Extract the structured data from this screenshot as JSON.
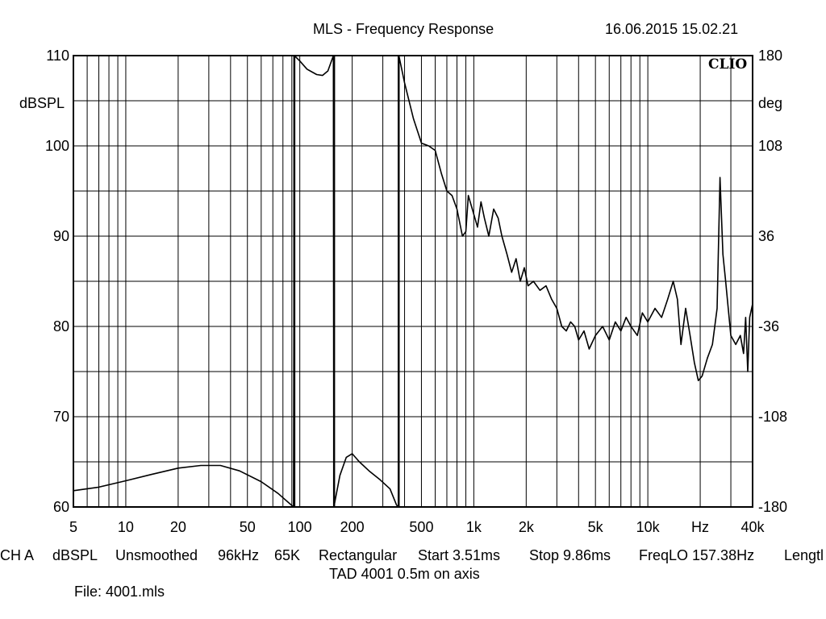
{
  "header": {
    "title": "MLS - Frequency Response",
    "datetime": "16.06.2015 15.02.21",
    "brand": "CLIO"
  },
  "chart_data": {
    "type": "line",
    "title": "MLS - Frequency Response",
    "x_scale": "log",
    "xlim": [
      5,
      40000
    ],
    "x_tick_labels": [
      {
        "value": 5,
        "label": "5"
      },
      {
        "value": 10,
        "label": "10"
      },
      {
        "value": 20,
        "label": "20"
      },
      {
        "value": 50,
        "label": "50"
      },
      {
        "value": 100,
        "label": "100"
      },
      {
        "value": 200,
        "label": "200"
      },
      {
        "value": 500,
        "label": "500"
      },
      {
        "value": 1000,
        "label": "1k"
      },
      {
        "value": 2000,
        "label": "2k"
      },
      {
        "value": 5000,
        "label": "5k"
      },
      {
        "value": 10000,
        "label": "10k"
      },
      {
        "value": 20000,
        "label": "Hz"
      },
      {
        "value": 40000,
        "label": "40k"
      }
    ],
    "y_left": {
      "unit": "dBSPL",
      "ylim": [
        60,
        110
      ],
      "ticks": [
        60,
        70,
        80,
        90,
        100,
        110
      ]
    },
    "y_right": {
      "unit": "deg",
      "ylim": [
        -180,
        180
      ],
      "ticks": [
        180,
        108,
        36,
        -36,
        -108,
        -180
      ]
    },
    "grid": true,
    "gate_markers_hz": [
      93,
      157.38,
      370
    ],
    "series": [
      {
        "axis": "left",
        "color": "#000000",
        "points": [
          [
            5,
            61.8
          ],
          [
            7,
            62.2
          ],
          [
            10,
            62.9
          ],
          [
            14,
            63.6
          ],
          [
            20,
            64.3
          ],
          [
            27,
            64.6
          ],
          [
            35,
            64.6
          ],
          [
            45,
            64.0
          ],
          [
            60,
            62.8
          ],
          [
            75,
            61.5
          ],
          [
            92,
            60.0
          ],
          [
            93,
            110.0
          ],
          [
            100,
            109.4
          ],
          [
            110,
            108.5
          ],
          [
            125,
            107.9
          ],
          [
            135,
            107.8
          ],
          [
            145,
            108.3
          ],
          [
            156,
            110.0
          ],
          [
            157,
            60.0
          ],
          [
            170,
            63.5
          ],
          [
            185,
            65.5
          ],
          [
            200,
            65.9
          ],
          [
            220,
            65.0
          ],
          [
            250,
            64.0
          ],
          [
            290,
            63.0
          ],
          [
            330,
            62.0
          ],
          [
            360,
            60.2
          ],
          [
            370,
            60.0
          ],
          [
            371,
            110.0
          ],
          [
            400,
            107.0
          ],
          [
            450,
            103.0
          ],
          [
            500,
            100.3
          ],
          [
            550,
            100.0
          ],
          [
            600,
            99.5
          ],
          [
            650,
            97.0
          ],
          [
            700,
            95.0
          ],
          [
            750,
            94.5
          ],
          [
            800,
            93.0
          ],
          [
            860,
            90.0
          ],
          [
            900,
            90.5
          ],
          [
            930,
            94.5
          ],
          [
            980,
            93.0
          ],
          [
            1050,
            91.0
          ],
          [
            1100,
            93.8
          ],
          [
            1150,
            92.0
          ],
          [
            1220,
            90.0
          ],
          [
            1300,
            93.0
          ],
          [
            1380,
            92.0
          ],
          [
            1450,
            90.0
          ],
          [
            1550,
            88.0
          ],
          [
            1650,
            86.0
          ],
          [
            1750,
            87.5
          ],
          [
            1850,
            85.0
          ],
          [
            1950,
            86.5
          ],
          [
            2050,
            84.5
          ],
          [
            2200,
            85.0
          ],
          [
            2400,
            84.0
          ],
          [
            2600,
            84.5
          ],
          [
            2800,
            83.0
          ],
          [
            3000,
            82.0
          ],
          [
            3200,
            80.0
          ],
          [
            3400,
            79.5
          ],
          [
            3600,
            80.5
          ],
          [
            3800,
            80.0
          ],
          [
            4000,
            78.5
          ],
          [
            4300,
            79.5
          ],
          [
            4600,
            77.5
          ],
          [
            5000,
            79.0
          ],
          [
            5500,
            80.0
          ],
          [
            6000,
            78.5
          ],
          [
            6500,
            80.5
          ],
          [
            7000,
            79.5
          ],
          [
            7500,
            81.0
          ],
          [
            8000,
            80.0
          ],
          [
            8700,
            79.0
          ],
          [
            9300,
            81.5
          ],
          [
            10000,
            80.5
          ],
          [
            11000,
            82.0
          ],
          [
            12000,
            81.0
          ],
          [
            13000,
            83.0
          ],
          [
            14000,
            85.0
          ],
          [
            14800,
            83.0
          ],
          [
            15500,
            78.0
          ],
          [
            16500,
            82.0
          ],
          [
            17500,
            79.0
          ],
          [
            18500,
            76.0
          ],
          [
            19500,
            74.0
          ],
          [
            20500,
            74.5
          ],
          [
            22000,
            76.5
          ],
          [
            23500,
            78.0
          ],
          [
            25000,
            82.0
          ],
          [
            26000,
            96.5
          ],
          [
            27000,
            88.0
          ],
          [
            28000,
            85.0
          ],
          [
            30000,
            79.0
          ],
          [
            32000,
            78.0
          ],
          [
            34000,
            79.0
          ],
          [
            35500,
            77.0
          ],
          [
            36500,
            81.0
          ],
          [
            37500,
            75.0
          ],
          [
            38500,
            81.0
          ],
          [
            40000,
            82.5
          ]
        ]
      }
    ]
  },
  "footer": {
    "info_items": [
      "CH A",
      "dBSPL",
      "Unsmoothed",
      "96kHz",
      "65K",
      "Rectangular",
      "Start 3.51ms",
      "Stop 9.86ms",
      "FreqLO 157.38Hz",
      "Lengtl"
    ],
    "description": "TAD 4001 0.5m on axis",
    "file_label": "File: 4001.mls"
  }
}
